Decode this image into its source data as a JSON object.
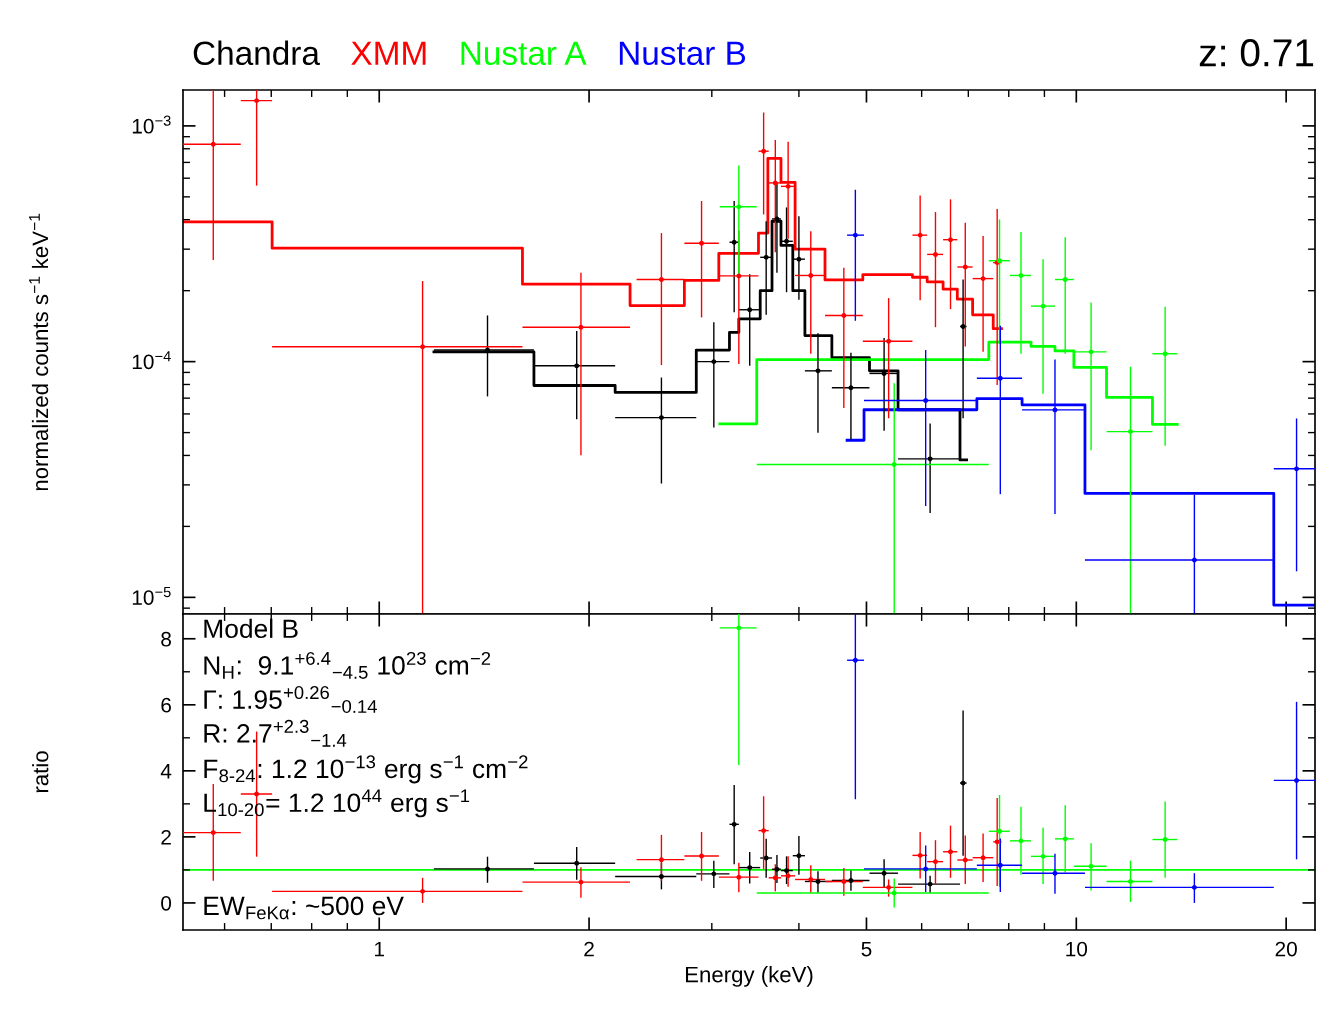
{
  "chart_data": [
    {
      "type": "scatter",
      "ylabel": "normalized counts s$^{−1}$ keV$^{−1}$",
      "log": "xy",
      "marker": "circle",
      "tick_labels": "y",
      "xlim": [
        0.523,
        22
      ],
      "xticks": [
        1,
        2,
        5,
        10,
        20
      ],
      "ylim": [
        8.5e-06,
        0.00142
      ],
      "yticks": [
        {
          "value": 1e-05,
          "label": "10$^{−5}$"
        },
        {
          "value": 0.0001,
          "label": "10$^{−4}$"
        },
        {
          "value": 0.001,
          "label": "10$^{−3}$"
        }
      ],
      "annotations": [
        "z: 0.71"
      ],
      "series": [
        {
          "type": "step",
          "marker": "none",
          "color": "#000000",
          "x": [
            1.198,
            1.667,
            2.18,
            2.85,
            3.18,
            3.28,
            3.52,
            3.66,
            3.77,
            3.92,
            4.08,
            4.46,
            5.05,
            5.55,
            6.81,
            6.96
          ],
          "values": [
            0.00011,
            7.92e-05,
            7.4e-05,
            0.000112,
            0.000133,
            0.000152,
            0.0002,
            0.000394,
            0.000311,
            0.0002,
            0.000129,
            0.000104,
            9.14e-05,
            6.25e-05,
            3.83e-05,
            3.83e-05
          ]
        },
        {
          "type": "step",
          "marker": "none",
          "color": "#ff0000",
          "x": [
            0.523,
            0.702,
            1.605,
            2.29,
            2.74,
            3.07,
            3.5,
            3.61,
            3.77,
            3.95,
            4.36,
            4.94,
            5.82,
            6.11,
            6.44,
            6.75,
            7.1,
            7.6,
            7.81
          ],
          "values": [
            0.000392,
            0.000303,
            0.000213,
            0.000173,
            0.000221,
            0.000288,
            0.000351,
            0.000728,
            0.000576,
            0.0003,
            0.000222,
            0.000234,
            0.000228,
            0.000218,
            0.000203,
            0.000184,
            0.000158,
            0.000138,
            0.000138
          ]
        },
        {
          "type": "step",
          "marker": "none",
          "color": "#00ff00",
          "x": [
            3.08,
            3.48,
            7.49,
            8.61,
            9.32,
            9.92,
            11.05,
            12.86,
            13.96
          ],
          "values": [
            5.45e-05,
            0.000102,
            0.000121,
            0.000116,
            0.000111,
            9.45e-05,
            7.05e-05,
            5.42e-05,
            5.42e-05
          ]
        },
        {
          "type": "step",
          "marker": "none",
          "color": "#0000ff",
          "x": [
            4.69,
            4.96,
            7.2,
            8.36,
            10.29,
            19.2,
            22
          ],
          "values": [
            4.64e-05,
            6.25e-05,
            6.96e-05,
            6.56e-05,
            2.76e-05,
            9.27e-06,
            9.27e-06
          ]
        },
        {
          "name": "Chandra",
          "color": "#000000",
          "x": [
            1.43,
            1.92,
            2.54,
            3.02,
            3.23,
            3.4,
            3.59,
            3.72,
            3.84,
            4.0,
            4.26,
            4.75,
            5.3,
            6.17,
            6.88
          ],
          "values": [
            0.000112,
            9.6e-05,
            5.79e-05,
            0.0001,
            0.000321,
            0.000166,
            0.000277,
            0.000403,
            0.000324,
            0.000272,
            9.14e-05,
            7.75e-05,
            8.91e-05,
            3.87e-05,
            0.000141
          ],
          "xerrors": [
            [
              1.198,
              1.667
            ],
            [
              1.667,
              2.18
            ],
            [
              2.18,
              2.85
            ],
            [
              2.85,
              3.18
            ],
            [
              3.18,
              3.28
            ],
            [
              3.28,
              3.52
            ],
            [
              3.52,
              3.66
            ],
            [
              3.66,
              3.77
            ],
            [
              3.77,
              3.92
            ],
            [
              3.92,
              4.08
            ],
            [
              4.08,
              4.46
            ],
            [
              4.46,
              5.05
            ],
            [
              5.05,
              5.55
            ],
            [
              5.55,
              6.81
            ],
            [
              6.81,
              6.96
            ]
          ],
          "errors": [
            [
              7.12e-05,
              0.000157
            ],
            [
              5.7e-05,
              0.000135
            ],
            [
              3.04e-05,
              8.56e-05
            ],
            [
              5.26e-05,
              0.000147
            ],
            [
              0.000162,
              0.00048
            ],
            [
              9.61e-05,
              0.000235
            ],
            [
              0.000158,
              0.000394
            ],
            [
              0.000238,
              0.000573
            ],
            [
              0.000197,
              0.000451
            ],
            [
              0.000183,
              0.000414
            ],
            [
              4.99e-05,
              0.000132
            ],
            [
              4.67e-05,
              0.000109
            ],
            [
              5.09e-05,
              0.000126
            ],
            [
              2.28e-05,
              5.47e-05
            ],
            [
              5.75e-05,
              0.000223
            ]
          ]
        },
        {
          "name": "XMM",
          "color": "#ff0000",
          "x": [
            0.578,
            0.667,
            1.154,
            1.947,
            2.54,
            2.9,
            3.28,
            3.56,
            3.7,
            3.86,
            4.16,
            4.64,
            5.38,
            5.97,
            6.28,
            6.6,
            6.93,
            7.35,
            7.7
          ],
          "values": [
            0.000836,
            0.00128,
            0.0001156,
            0.00014,
            0.000223,
            0.000318,
            0.000231,
            0.000781,
            0.000573,
            0.000554,
            0.000232,
            0.000157,
            0.000122,
            0.000344,
            0.000285,
            0.000329,
            0.000252,
            0.000225,
            0.000263
          ],
          "xerrors": [
            [
              0.523,
              0.633
            ],
            [
              0.633,
              0.702
            ],
            [
              0.702,
              1.605
            ],
            [
              1.605,
              2.29
            ],
            [
              2.34,
              2.74
            ],
            [
              2.74,
              3.07
            ],
            [
              3.07,
              3.5
            ],
            [
              3.5,
              3.62
            ],
            [
              3.62,
              3.77
            ],
            [
              3.77,
              3.95
            ],
            [
              3.95,
              4.36
            ],
            [
              4.36,
              4.94
            ],
            [
              4.94,
              5.82
            ],
            [
              5.82,
              6.11
            ],
            [
              6.11,
              6.44
            ],
            [
              6.44,
              6.75
            ],
            [
              6.75,
              7.1
            ],
            [
              7.1,
              7.6
            ],
            [
              7.6,
              7.81
            ]
          ],
          "errors": [
            [
              0.00027,
              0.00142
            ],
            [
              0.000558,
              0.00142
            ],
            [
              8.5e-06,
              0.00022
            ],
            [
              4.01e-05,
              0.000238
            ],
            [
              9.67e-05,
              0.000351
            ],
            [
              0.000154,
              0.00048
            ],
            [
              9.77e-05,
              0.00036
            ],
            [
              0.000421,
              0.00114
            ],
            [
              0.000291,
              0.000871
            ],
            [
              0.000332,
              0.000857
            ],
            [
              0.000108,
              0.000357
            ],
            [
              6.36e-05,
              0.00025
            ],
            [
              5.75e-05,
              0.000186
            ],
            [
              0.000182,
              0.000507
            ],
            [
              0.00014,
              0.000431
            ],
            [
              0.000167,
              0.000488
            ],
            [
              0.000116,
              0.000388
            ],
            [
              0.00011,
              0.000341
            ],
            [
              7.96e-05,
              0.000444
            ]
          ]
        },
        {
          "name": "Nustar A",
          "color": "#00ff00",
          "x": [
            3.28,
            5.48,
            7.76,
            8.33,
            8.96,
            9.64,
            10.5,
            11.96,
            13.41
          ],
          "values": [
            0.000454,
            3.66e-05,
            0.000268,
            0.000232,
            0.000172,
            0.000223,
            0.00011,
            5.05e-05,
            0.000108
          ],
          "xerrors": [
            [
              3.08,
              3.48
            ],
            [
              3.48,
              7.49
            ],
            [
              7.49,
              8.03
            ],
            [
              8.03,
              8.61
            ],
            [
              8.61,
              9.32
            ],
            [
              9.32,
              9.92
            ],
            [
              9.92,
              11.05
            ],
            [
              11.05,
              12.86
            ],
            [
              12.86,
              13.96
            ]
          ],
          "errors": [
            [
              0.000235,
              0.00068
            ],
            [
              8.5e-06,
              8.09e-05
            ],
            [
              0.000119,
              0.000401
            ],
            [
              0.000108,
              0.000355
            ],
            [
              7.31e-05,
              0.000272
            ],
            [
              0.000108,
              0.000337
            ],
            [
              4.21e-05,
              0.000178
            ],
            [
              8.5e-06,
              9.51e-05
            ],
            [
              4.4e-05,
              0.000171
            ]
          ]
        },
        {
          "name": "Nustar B",
          "color": "#0000ff",
          "x": [
            4.82,
            6.08,
            7.78,
            9.32,
            14.77,
            20.7
          ],
          "values": [
            0.000344,
            6.84e-05,
            8.5e-05,
            6.24e-05,
            1.44e-05,
            3.51e-05
          ],
          "xerrors": [
            [
              4.69,
              4.96
            ],
            [
              4.96,
              7.2
            ],
            [
              7.2,
              8.36
            ],
            [
              8.36,
              10.29
            ],
            [
              10.29,
              19.2
            ],
            [
              19.2,
              22
            ]
          ],
          "errors": [
            [
              0.000149,
              0.000536
            ],
            [
              2.44e-05,
              0.000112
            ],
            [
              2.74e-05,
              0.000142
            ],
            [
              2.26e-05,
              0.000102
            ],
            [
              8.5e-06,
              2.73e-05
            ],
            [
              1.29e-05,
              5.74e-05
            ]
          ]
        }
      ]
    },
    {
      "type": "scatter",
      "xlabel": "Energy (keV)",
      "ylabel": "ratio",
      "log": "x",
      "marker": "circle",
      "xlim": [
        0.523,
        22
      ],
      "xticks": [
        1,
        2,
        5,
        10,
        20
      ],
      "ylim": [
        -0.82,
        8.75
      ],
      "yticks": [
        0,
        2,
        4,
        6,
        8
      ],
      "ref_lines": [
        {
          "axis": "y",
          "value": 1,
          "color": "#00ff00"
        }
      ],
      "annotations": [
        "Model B",
        "N$_{H}$:  9.1$^{+6.4}$$_{−4.5}$ 10$^{23}$ cm$^{−2}$",
        "Γ: 1.95$^{+0.26}$$_{−0.14}$",
        "R: 2.7$^{+2.3}$$_{−1.4}$",
        "F$_{8‐24}$: 1.2 10$^{−13}$ erg s$^{−1}$ cm$^{−2}$",
        "L$_{10‐20}$= 1.2 10$^{44}$ erg s$^{−1}$",
        "EW$_{FeKα}$: ~500 eV"
      ],
      "series": [
        {
          "color": "#000000",
          "x": [
            1.43,
            1.92,
            2.54,
            3.02,
            3.23,
            3.4,
            3.59,
            3.72,
            3.84,
            4.0,
            4.26,
            4.75,
            5.3,
            6.17,
            6.88
          ],
          "values": [
            1.03,
            1.2,
            0.8,
            0.88,
            2.38,
            1.07,
            1.36,
            1.02,
            0.98,
            1.43,
            0.65,
            0.68,
            0.9,
            0.57,
            3.63
          ],
          "xerrors": [
            [
              1.198,
              1.667
            ],
            [
              1.667,
              2.18
            ],
            [
              2.18,
              2.85
            ],
            [
              2.85,
              3.18
            ],
            [
              3.18,
              3.28
            ],
            [
              3.28,
              3.52
            ],
            [
              3.52,
              3.66
            ],
            [
              3.66,
              3.77
            ],
            [
              3.77,
              3.92
            ],
            [
              3.92,
              4.08
            ],
            [
              4.08,
              4.46
            ],
            [
              4.46,
              5.05
            ],
            [
              5.05,
              5.55
            ],
            [
              5.55,
              6.81
            ],
            [
              6.81,
              6.96
            ]
          ],
          "errors": [
            [
              0.61,
              1.4
            ],
            [
              0.7,
              1.69
            ],
            [
              0.41,
              1.22
            ],
            [
              0.45,
              1.28
            ],
            [
              1.17,
              3.57
            ],
            [
              0.59,
              1.54
            ],
            [
              0.76,
              1.94
            ],
            [
              0.6,
              1.45
            ],
            [
              0.57,
              1.41
            ],
            [
              0.85,
              2.03
            ],
            [
              0.31,
              0.96
            ],
            [
              0.37,
              0.98
            ],
            [
              0.47,
              1.32
            ],
            [
              0.3,
              0.82
            ],
            [
              1.43,
              5.83
            ]
          ]
        },
        {
          "color": "#ff0000",
          "x": [
            0.578,
            0.667,
            1.154,
            1.947,
            2.54,
            2.9,
            3.28,
            3.56,
            3.7,
            3.86,
            4.16,
            4.64,
            5.38,
            5.97,
            6.28,
            6.6,
            6.93,
            7.35,
            7.7
          ],
          "values": [
            2.13,
            3.3,
            0.35,
            0.63,
            1.31,
            1.42,
            0.78,
            2.19,
            0.76,
            0.82,
            0.71,
            0.65,
            0.47,
            1.44,
            1.25,
            1.55,
            1.3,
            1.37,
            1.85
          ],
          "xerrors": [
            [
              0.523,
              0.633
            ],
            [
              0.633,
              0.702
            ],
            [
              0.702,
              1.605
            ],
            [
              1.605,
              2.29
            ],
            [
              2.34,
              2.74
            ],
            [
              2.74,
              3.07
            ],
            [
              3.07,
              3.5
            ],
            [
              3.5,
              3.62
            ],
            [
              3.62,
              3.77
            ],
            [
              3.77,
              3.95
            ],
            [
              3.95,
              4.36
            ],
            [
              4.36,
              4.94
            ],
            [
              4.94,
              5.82
            ],
            [
              5.82,
              6.11
            ],
            [
              6.11,
              6.44
            ],
            [
              6.44,
              6.75
            ],
            [
              6.75,
              7.1
            ],
            [
              7.1,
              7.6
            ],
            [
              7.6,
              7.81
            ]
          ],
          "errors": [
            [
              0.67,
              3.6
            ],
            [
              1.4,
              5.19
            ],
            [
              0.0,
              0.76
            ],
            [
              0.16,
              1.08
            ],
            [
              0.67,
              2.06
            ],
            [
              0.67,
              2.15
            ],
            [
              0.32,
              1.22
            ],
            [
              1.02,
              3.23
            ],
            [
              0.35,
              1.17
            ],
            [
              0.49,
              1.41
            ],
            [
              0.3,
              1.14
            ],
            [
              0.22,
              1.06
            ],
            [
              0.19,
              0.71
            ],
            [
              0.74,
              2.15
            ],
            [
              0.57,
              1.9
            ],
            [
              0.76,
              2.34
            ],
            [
              0.57,
              2.04
            ],
            [
              0.63,
              2.1
            ],
            [
              0.51,
              3.18
            ]
          ]
        },
        {
          "color": "#00ff00",
          "x": [
            3.28,
            5.48,
            7.76,
            8.33,
            8.96,
            9.64,
            10.5,
            11.96,
            13.41
          ],
          "values": [
            8.33,
            0.3,
            2.17,
            1.88,
            1.41,
            1.94,
            1.11,
            0.65,
            1.92
          ],
          "xerrors": [
            [
              3.08,
              3.48
            ],
            [
              3.48,
              7.49
            ],
            [
              7.49,
              8.03
            ],
            [
              8.03,
              8.61
            ],
            [
              8.61,
              9.32
            ],
            [
              9.32,
              9.92
            ],
            [
              9.92,
              11.05
            ],
            [
              11.05,
              12.86
            ],
            [
              12.86,
              13.96
            ]
          ],
          "errors": [
            [
              4.18,
              8.75
            ],
            [
              -0.14,
              0.74
            ],
            [
              0.49,
              3.27
            ],
            [
              0.85,
              2.91
            ],
            [
              0.57,
              2.28
            ],
            [
              0.92,
              2.96
            ],
            [
              0.38,
              1.81
            ],
            [
              0.03,
              1.28
            ],
            [
              0.76,
              3.07
            ]
          ]
        },
        {
          "color": "#0000ff",
          "x": [
            4.82,
            6.08,
            7.78,
            9.32,
            14.77,
            20.7
          ],
          "values": [
            7.35,
            1.03,
            1.14,
            0.9,
            0.47,
            3.71
          ],
          "xerrors": [
            [
              4.69,
              4.96
            ],
            [
              4.96,
              7.2
            ],
            [
              7.2,
              8.36
            ],
            [
              8.36,
              10.29
            ],
            [
              10.29,
              19.2
            ],
            [
              19.2,
              22
            ]
          ],
          "errors": [
            [
              3.14,
              8.75
            ],
            [
              0.33,
              1.74
            ],
            [
              0.33,
              1.95
            ],
            [
              0.28,
              1.49
            ],
            [
              0.0,
              0.9
            ],
            [
              1.32,
              6.09
            ]
          ]
        }
      ]
    }
  ]
}
